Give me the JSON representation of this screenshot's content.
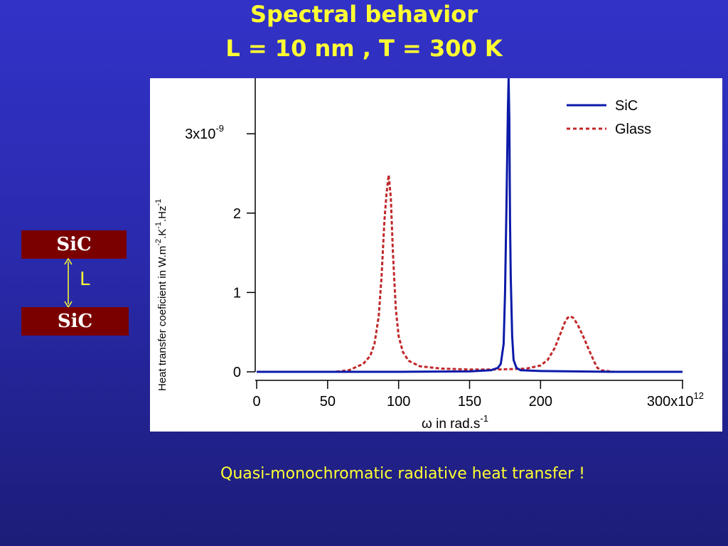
{
  "slide": {
    "title_line1": "Spectral behavior",
    "title_line2": "L = 10 nm , T = 300 K",
    "caption": "Quasi-monochromatic radiative heat transfer !",
    "text_color": "#ffff33",
    "background_color": "#2e2ec0"
  },
  "diagram": {
    "top_layer": "SiC",
    "bottom_layer": "SiC",
    "gap_label": "L",
    "layer_color": "#7a0000",
    "arrow_color": "#ffff33"
  },
  "chart_data": {
    "type": "line",
    "xlabel": "ω in rad.s",
    "xlabel_sup": "-1",
    "ylabel": "Heat transfer coeficient in W.m",
    "ylabel_sup1": "-2",
    "ylabel_mid": ".K",
    "ylabel_sup2": "-1",
    "ylabel_end": ".Hz",
    "ylabel_sup3": "-1",
    "xlim": [
      0,
      300
    ],
    "ylim": [
      0,
      3.7
    ],
    "x_ticks": [
      0,
      50,
      100,
      150,
      200,
      300
    ],
    "x_tick_labels": [
      "0",
      "50",
      "100",
      "150",
      "200",
      "300x10"
    ],
    "x_tick_label_sup": "12",
    "y_ticks": [
      0,
      1,
      2,
      3
    ],
    "y_tick_labels": [
      "0",
      "1",
      "2",
      "3x10"
    ],
    "y_tick_label_sup": "-9",
    "legend_position": "top-right",
    "series": [
      {
        "name": "SiC",
        "color": "#0a1aa8",
        "style": "solid",
        "x": [
          0,
          100,
          150,
          165,
          170,
          172,
          174,
          175,
          176,
          177,
          177.5,
          178,
          178.5,
          179,
          180,
          181,
          183,
          186,
          200,
          250,
          300
        ],
        "y": [
          0,
          0,
          0.005,
          0.02,
          0.05,
          0.1,
          0.35,
          1.0,
          2.1,
          3.3,
          3.7,
          3.2,
          1.9,
          1.2,
          0.45,
          0.15,
          0.05,
          0.02,
          0.01,
          0,
          0
        ]
      },
      {
        "name": "Glass",
        "color": "#c0282a",
        "style": "dashed",
        "x": [
          0,
          55,
          65,
          75,
          80,
          83,
          86,
          88,
          90,
          91.5,
          93,
          94.5,
          96,
          98,
          100,
          103,
          107,
          115,
          130,
          150,
          170,
          190,
          200,
          205,
          210,
          214,
          217,
          219,
          221,
          223,
          226,
          230,
          234,
          238,
          240,
          243,
          247,
          252,
          260,
          300
        ],
        "y": [
          0,
          0,
          0.02,
          0.1,
          0.2,
          0.35,
          0.7,
          1.2,
          1.9,
          2.25,
          2.48,
          2.2,
          1.5,
          0.8,
          0.45,
          0.25,
          0.14,
          0.07,
          0.04,
          0.03,
          0.03,
          0.04,
          0.08,
          0.15,
          0.3,
          0.48,
          0.62,
          0.68,
          0.7,
          0.68,
          0.6,
          0.45,
          0.28,
          0.12,
          0.05,
          0.02,
          0.01,
          0,
          0,
          0
        ]
      }
    ]
  }
}
